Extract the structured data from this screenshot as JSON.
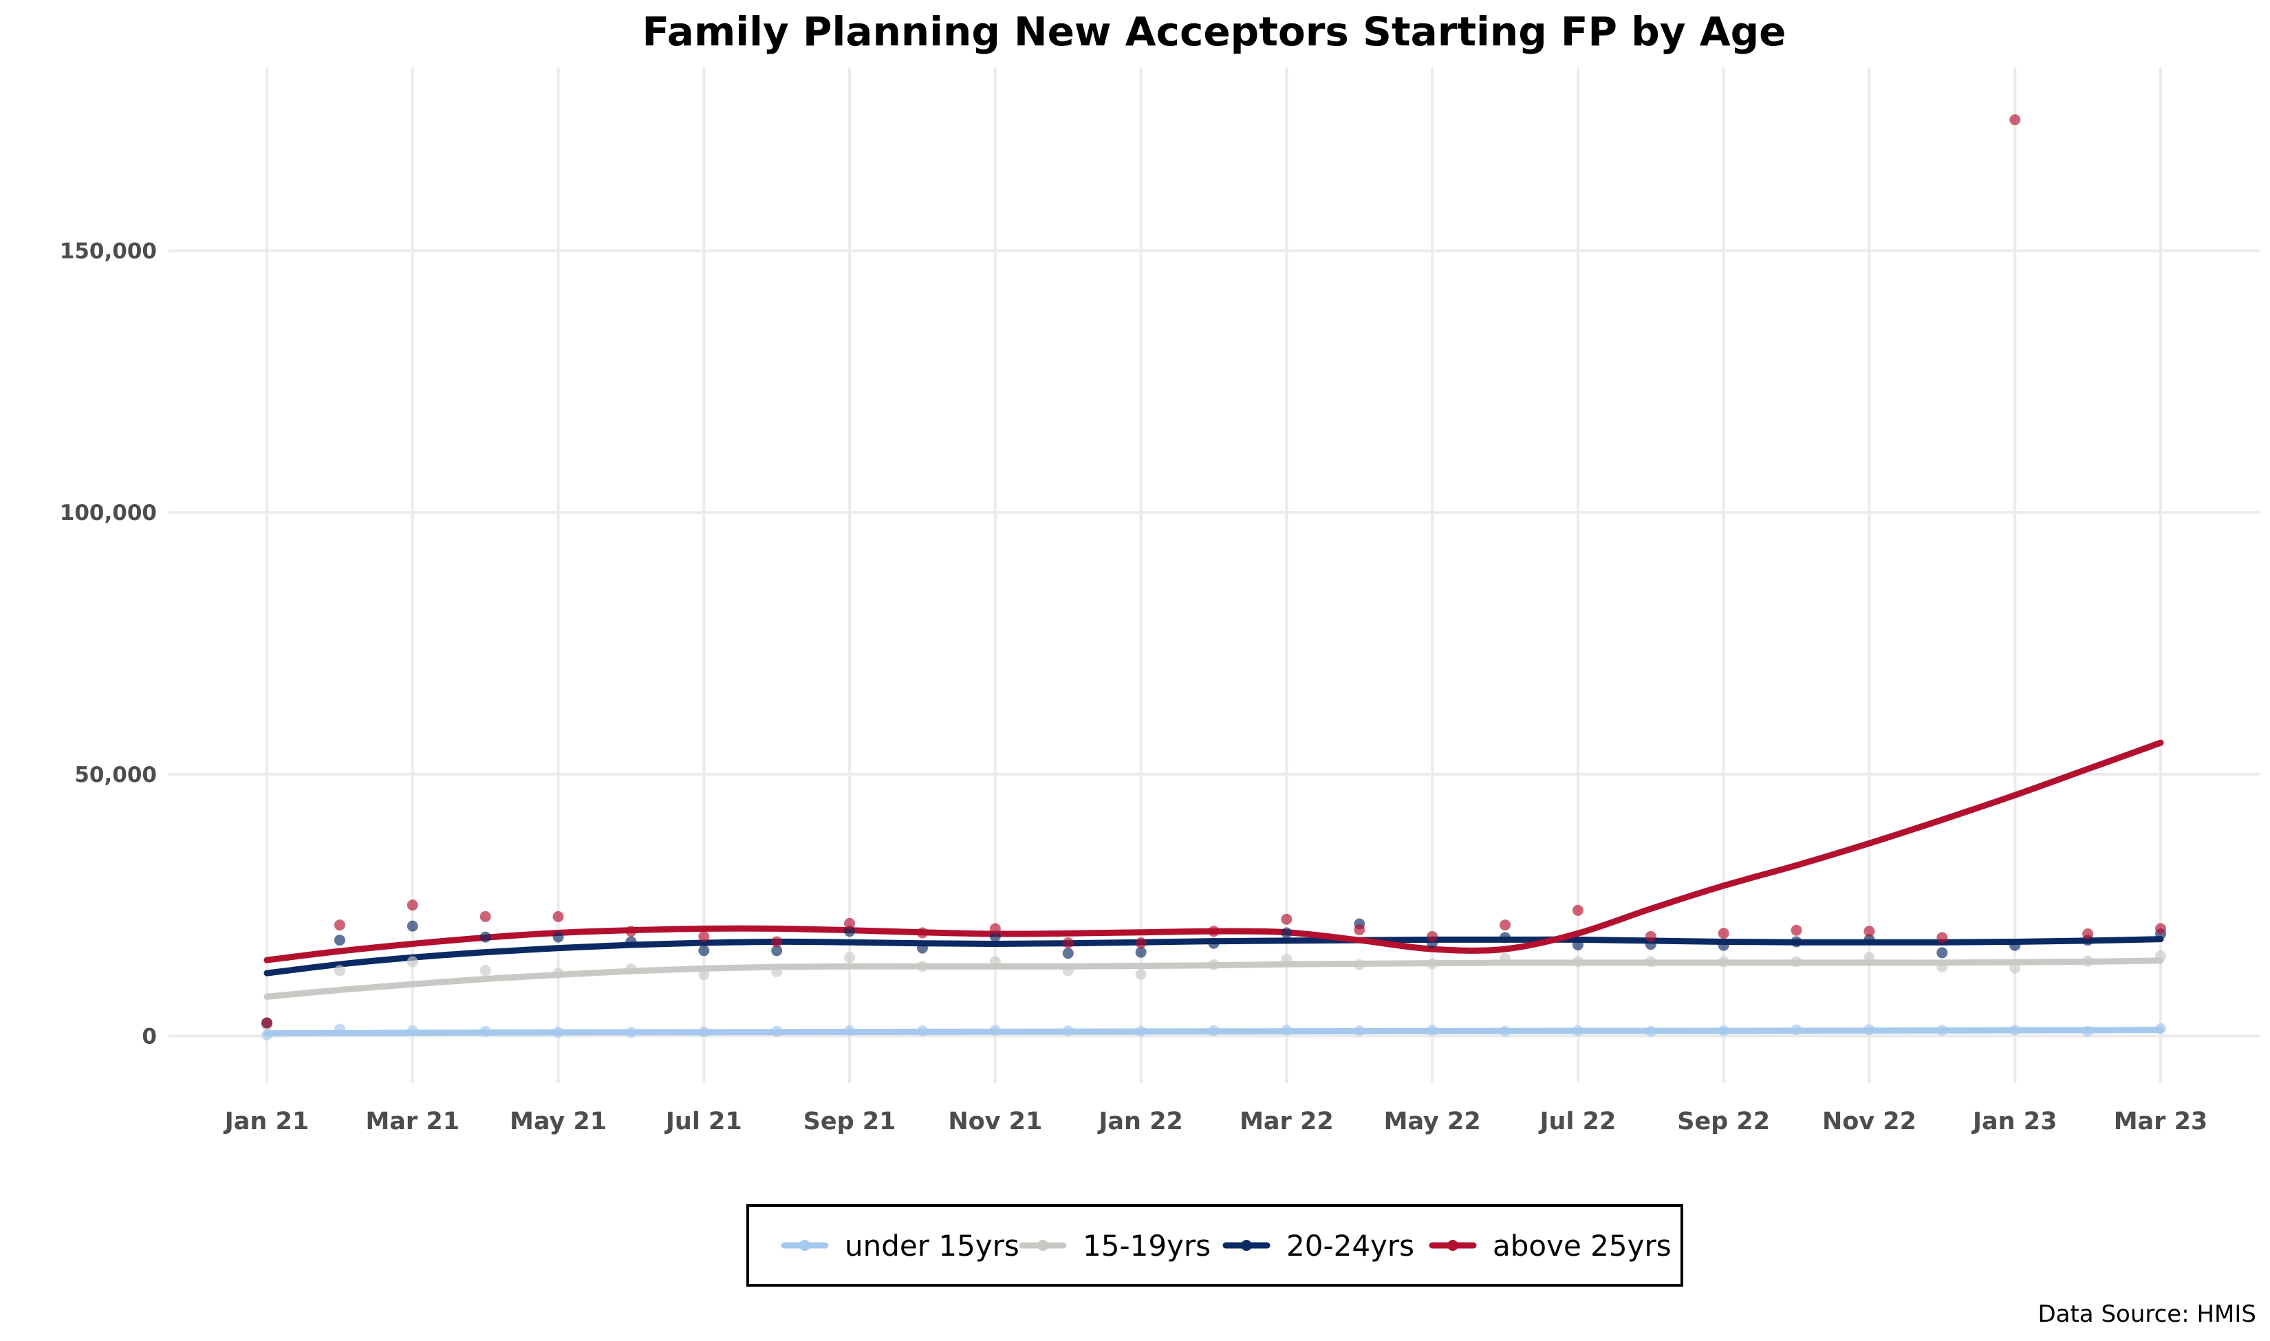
{
  "chart_data": {
    "type": "scatter",
    "title": "Family Planning New Acceptors Starting FP by Age",
    "xlabel": "",
    "ylabel": "",
    "ylim": [
      -9000,
      185000
    ],
    "grid": true,
    "legend_position": "bottom",
    "y_ticks": [
      {
        "value": 0,
        "label": "0"
      },
      {
        "value": 50000,
        "label": "50,000"
      },
      {
        "value": 100000,
        "label": "100,000"
      },
      {
        "value": 150000,
        "label": "150,000"
      }
    ],
    "x": [
      "2021-01",
      "2021-02",
      "2021-03",
      "2021-04",
      "2021-05",
      "2021-06",
      "2021-07",
      "2021-08",
      "2021-09",
      "2021-10",
      "2021-11",
      "2021-12",
      "2022-01",
      "2022-02",
      "2022-03",
      "2022-04",
      "2022-05",
      "2022-06",
      "2022-07",
      "2022-08",
      "2022-09",
      "2022-10",
      "2022-11",
      "2022-12",
      "2023-01",
      "2023-02",
      "2023-03"
    ],
    "x_tick_labels": [
      "Jan 21",
      "Mar 21",
      "May 21",
      "Jul 21",
      "Sep 21",
      "Nov 21",
      "Jan 22",
      "Mar 22",
      "May 22",
      "Jul 22",
      "Sep 22",
      "Nov 22",
      "Jan 23",
      "Mar 23"
    ],
    "series": [
      {
        "name": "under 15yrs",
        "color": "#a5c8ed",
        "values": [
          200,
          1300,
          1000,
          900,
          700,
          700,
          800,
          900,
          1000,
          1000,
          1100,
          1000,
          900,
          1000,
          1100,
          1000,
          1100,
          900,
          1000,
          900,
          1000,
          1200,
          1200,
          1100,
          1100,
          900,
          1400
        ],
        "trend": [
          500,
          550,
          600,
          650,
          700,
          720,
          740,
          760,
          780,
          800,
          820,
          840,
          860,
          880,
          900,
          920,
          940,
          950,
          960,
          970,
          980,
          1000,
          1020,
          1050,
          1080,
          1110,
          1150
        ]
      },
      {
        "name": "15-19yrs",
        "color": "#c8c8c4",
        "values": [
          2000,
          12500,
          14200,
          12500,
          12000,
          12800,
          11700,
          12300,
          15000,
          13300,
          14200,
          12500,
          11800,
          13600,
          14600,
          13600,
          13800,
          14800,
          14200,
          14200,
          14200,
          14200,
          15000,
          13200,
          13000,
          14300,
          15300
        ],
        "trend": [
          7500,
          8800,
          9900,
          10900,
          11700,
          12400,
          12900,
          13200,
          13300,
          13300,
          13300,
          13300,
          13400,
          13500,
          13700,
          13800,
          13900,
          14000,
          14000,
          14000,
          14000,
          14000,
          14000,
          14000,
          14100,
          14200,
          14400
        ]
      },
      {
        "name": "20-24yrs",
        "color": "#0b2a63",
        "values": [
          2500,
          18300,
          21000,
          18900,
          18900,
          18000,
          16300,
          16300,
          20000,
          16800,
          19000,
          15800,
          16000,
          17700,
          19700,
          21400,
          17800,
          18800,
          17400,
          17500,
          17300,
          18000,
          18400,
          15900,
          17300,
          18300,
          19500
        ],
        "trend": [
          12000,
          13700,
          15000,
          16000,
          16800,
          17400,
          17800,
          18000,
          17900,
          17700,
          17600,
          17700,
          17900,
          18100,
          18200,
          18300,
          18400,
          18400,
          18400,
          18200,
          18000,
          17900,
          17900,
          17900,
          18000,
          18200,
          18500
        ]
      },
      {
        "name": "above 25yrs",
        "color": "#b3102f",
        "values": [
          2500,
          21200,
          25000,
          22800,
          22800,
          20000,
          19000,
          18000,
          21500,
          19700,
          20500,
          17800,
          17800,
          20000,
          22300,
          20300,
          19000,
          21200,
          24000,
          19000,
          19600,
          20200,
          20000,
          18800,
          175000,
          19500,
          20500
        ],
        "trend": [
          14500,
          16200,
          17600,
          18800,
          19700,
          20200,
          20500,
          20500,
          20200,
          19800,
          19500,
          19600,
          19800,
          20000,
          19800,
          18300,
          16600,
          16600,
          19600,
          24300,
          28700,
          32600,
          36800,
          41300,
          46000,
          51000,
          56000
        ]
      }
    ]
  },
  "source_note": "Data Source: HMIS"
}
